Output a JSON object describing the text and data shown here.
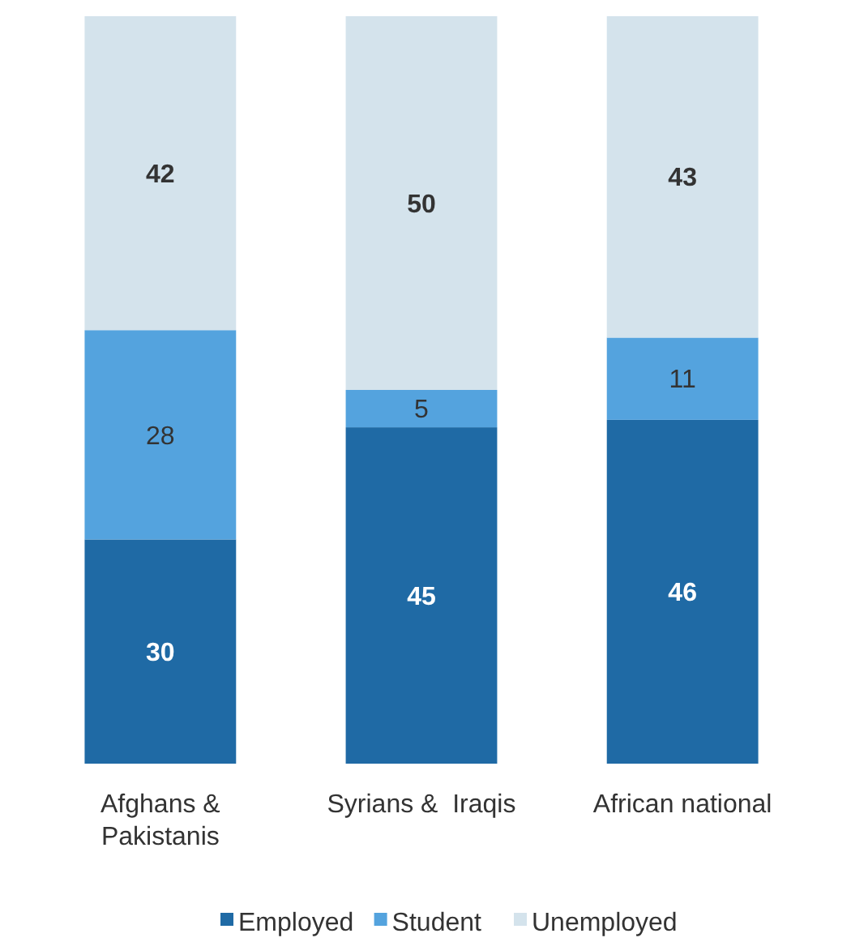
{
  "chart_data": {
    "type": "bar",
    "stacked": true,
    "data_labels": true,
    "legend": "bottom",
    "categories": [
      "Afghans & Pakistanis",
      "Syrians &  Iraqis",
      "African national"
    ],
    "series": [
      {
        "name": "Employed",
        "color": "#1f6aa5",
        "values": [
          30,
          45,
          46
        ]
      },
      {
        "name": "Student",
        "color": "#54a3de",
        "values": [
          28,
          5,
          11
        ]
      },
      {
        "name": "Unemployed",
        "color": "#d4e3ec",
        "values": [
          42,
          50,
          43
        ]
      }
    ]
  }
}
